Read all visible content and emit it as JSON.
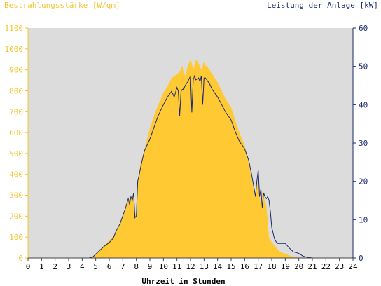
{
  "chart_data": {
    "type": "area",
    "left_axis_title": "Bestrahlungsstärke [W/qm]",
    "right_axis_title": "Leistung der Anlage [kW]",
    "xlabel": "Uhrzeit in Stunden",
    "xlim": [
      0,
      24
    ],
    "ylim_left": [
      0,
      1100
    ],
    "ylim_right": [
      0,
      60
    ],
    "x_ticks": [
      "0",
      "1",
      "2",
      "3",
      "4",
      "5",
      "6",
      "7",
      "8",
      "9",
      "10",
      "11",
      "12",
      "13",
      "14",
      "15",
      "16",
      "17",
      "18",
      "19",
      "20",
      "21",
      "22",
      "23",
      "24"
    ],
    "y_left_ticks": [
      0,
      100,
      200,
      300,
      400,
      500,
      600,
      700,
      800,
      900,
      1000,
      1100
    ],
    "y_right_ticks": [
      0,
      10,
      20,
      30,
      40,
      50,
      60
    ],
    "grid": false,
    "colors": {
      "irradiance": "#ffc933",
      "power": "#1a2a6c",
      "plot_bg": "#dcdcdc",
      "left_axis": "#f4c430",
      "right_axis": "#1a2a6c"
    },
    "series": [
      {
        "name": "Bestrahlungsstärke",
        "axis": "left",
        "style": "area",
        "x": [
          0,
          4.5,
          4.8,
          5.0,
          5.3,
          5.6,
          6.0,
          6.3,
          6.5,
          6.8,
          7.0,
          7.2,
          7.4,
          7.6,
          7.8,
          7.9,
          8.0,
          8.1,
          8.3,
          8.6,
          9.0,
          9.3,
          9.6,
          10.0,
          10.3,
          10.6,
          11.0,
          11.2,
          11.4,
          11.5,
          11.6,
          11.8,
          12.0,
          12.1,
          12.2,
          12.4,
          12.6,
          12.8,
          13.0,
          13.1,
          13.2,
          13.4,
          13.6,
          13.8,
          14.0,
          14.3,
          14.6,
          15.0,
          15.3,
          15.6,
          16.0,
          16.3,
          16.6,
          16.8,
          17.0,
          17.1,
          17.2,
          17.3,
          17.4,
          17.5,
          17.6,
          17.8,
          18.0,
          18.2,
          18.4,
          18.6,
          19.0,
          19.3,
          19.6,
          20.0,
          20.3,
          20.6,
          21.0,
          24
        ],
        "y": [
          0,
          0,
          5,
          20,
          40,
          60,
          85,
          105,
          130,
          165,
          200,
          235,
          275,
          290,
          300,
          220,
          200,
          360,
          450,
          520,
          620,
          680,
          730,
          790,
          820,
          860,
          880,
          890,
          920,
          900,
          870,
          920,
          950,
          930,
          900,
          950,
          930,
          900,
          940,
          920,
          920,
          900,
          880,
          860,
          840,
          800,
          760,
          720,
          660,
          600,
          540,
          460,
          350,
          300,
          380,
          300,
          250,
          320,
          280,
          280,
          250,
          100,
          75,
          60,
          45,
          30,
          20,
          12,
          6,
          2,
          0,
          0,
          0,
          0
        ]
      },
      {
        "name": "Leistung der Anlage",
        "axis": "right",
        "style": "line",
        "x": [
          0,
          4.5,
          4.8,
          5.0,
          5.3,
          5.6,
          6.0,
          6.3,
          6.5,
          6.8,
          7.0,
          7.2,
          7.4,
          7.5,
          7.6,
          7.7,
          7.8,
          7.9,
          8.0,
          8.1,
          8.2,
          8.4,
          8.6,
          9.0,
          9.3,
          9.6,
          10.0,
          10.3,
          10.6,
          10.8,
          11.0,
          11.1,
          11.2,
          11.3,
          11.4,
          11.5,
          11.6,
          11.8,
          12.0,
          12.1,
          12.2,
          12.3,
          12.4,
          12.6,
          12.7,
          12.8,
          12.9,
          13.0,
          13.1,
          13.2,
          13.4,
          13.6,
          13.8,
          14.0,
          14.3,
          14.6,
          15.0,
          15.3,
          15.6,
          16.0,
          16.3,
          16.5,
          16.7,
          16.8,
          16.9,
          17.0,
          17.1,
          17.2,
          17.3,
          17.4,
          17.5,
          17.6,
          17.7,
          17.8,
          17.9,
          18.0,
          18.2,
          18.4,
          18.6,
          19.0,
          19.3,
          19.6,
          20.0,
          20.3,
          20.6,
          21.0,
          24
        ],
        "y": [
          0,
          0,
          0.3,
          1.0,
          2.0,
          3.0,
          4.0,
          5.2,
          7.0,
          9.0,
          11.0,
          13.0,
          15.5,
          14.0,
          16.0,
          15.0,
          17.0,
          10.5,
          11.0,
          20.0,
          21.5,
          25.0,
          28.0,
          31.0,
          34.0,
          37.0,
          40.0,
          42.0,
          43.5,
          42.0,
          44.5,
          43.5,
          37.0,
          43.5,
          44.0,
          44.0,
          45.0,
          46.0,
          47.5,
          38.0,
          46.5,
          47.5,
          46.5,
          47.0,
          46.0,
          47.5,
          40.0,
          47.0,
          47.0,
          46.5,
          45.5,
          44.0,
          43.0,
          42.0,
          40.0,
          38.0,
          36.0,
          33.0,
          30.5,
          28.5,
          25.5,
          22.0,
          18.0,
          16.0,
          20.0,
          23.0,
          16.0,
          18.0,
          13.0,
          17.0,
          16.0,
          15.5,
          16.0,
          15.0,
          12.0,
          8.0,
          5.0,
          3.8,
          3.8,
          3.8,
          2.6,
          1.6,
          1.2,
          0.5,
          0.2,
          0,
          0
        ]
      }
    ]
  }
}
